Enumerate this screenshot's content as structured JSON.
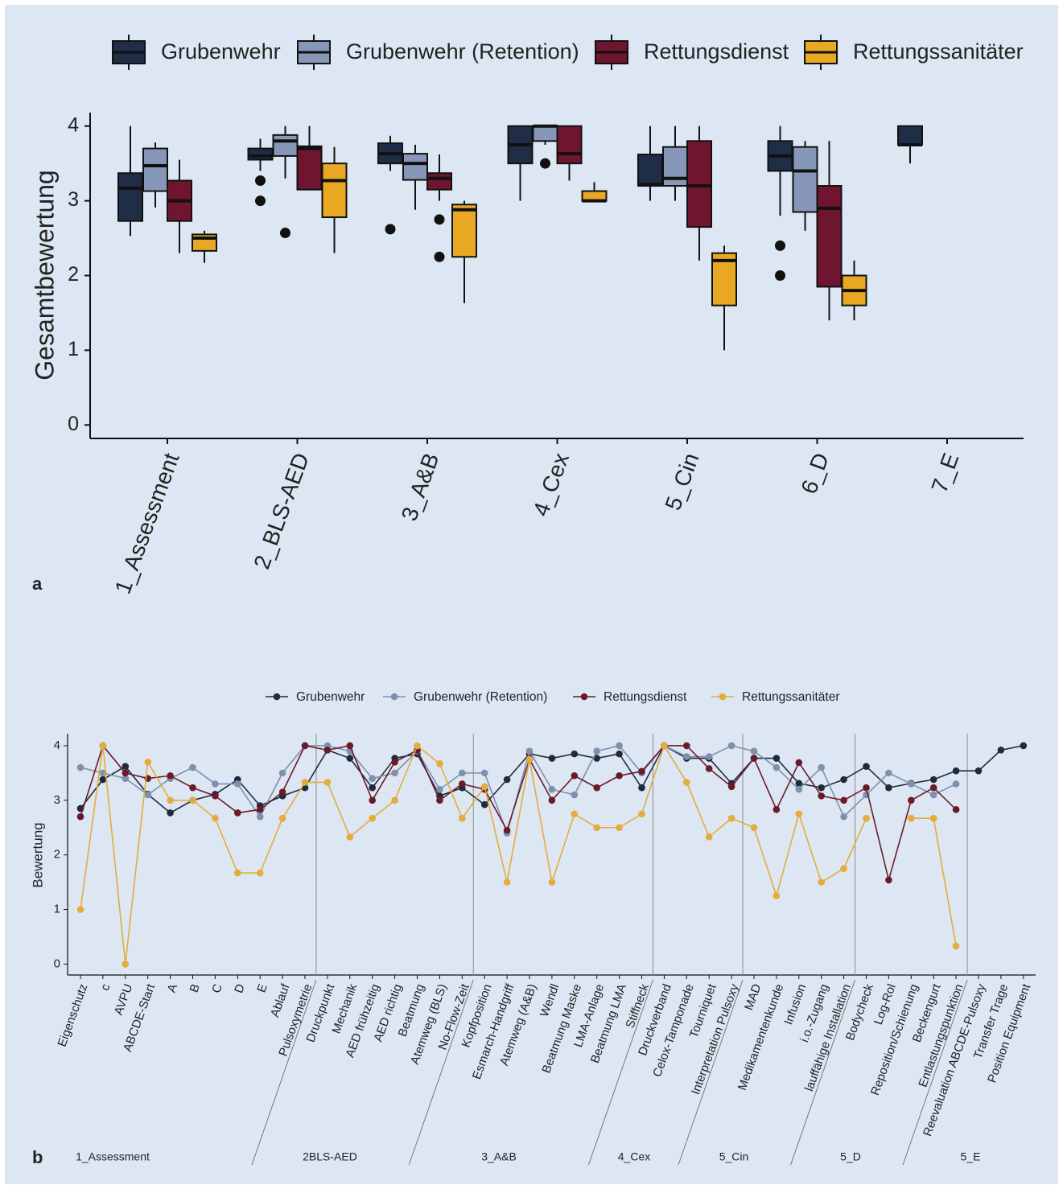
{
  "chart_data": [
    {
      "type": "box",
      "panel": "a",
      "y_label": "Gesamtbewertung",
      "categories": [
        "1_Assessment",
        "2_BLS-AED",
        "3_A&B",
        "4_Cex",
        "5_Cin",
        "6_D",
        "7_E"
      ],
      "ylim": [
        -0.18,
        4.18
      ],
      "yticks": [
        0,
        1,
        2,
        3,
        4
      ],
      "grid": false,
      "legend": "top",
      "series": [
        {
          "name": "Grubenwehr",
          "color": "#1f2d47",
          "min": [
            2.53,
            3.4,
            3.4,
            3.0,
            3.0,
            2.8,
            3.5
          ],
          "q1": [
            2.73,
            3.55,
            3.5,
            3.5,
            3.2,
            3.4,
            3.75
          ],
          "median": [
            3.17,
            3.6,
            3.63,
            3.75,
            3.22,
            3.6,
            3.75
          ],
          "q3": [
            3.37,
            3.7,
            3.77,
            4.0,
            3.62,
            3.8,
            4.0
          ],
          "max": [
            4.0,
            3.83,
            3.87,
            4.0,
            4.0,
            4.0,
            4.0
          ],
          "outliers": [
            [],
            [
              3.27,
              3.0
            ],
            [
              2.62
            ],
            [],
            [],
            [
              2.4,
              2.0
            ],
            []
          ]
        },
        {
          "name": "Grubenwehr (Retention)",
          "color": "#8797b8",
          "min": [
            2.91,
            3.3,
            2.88,
            3.75,
            3.0,
            2.6,
            null
          ],
          "q1": [
            3.13,
            3.6,
            3.28,
            3.8,
            3.2,
            2.85,
            null
          ],
          "median": [
            3.47,
            3.8,
            3.5,
            4.0,
            3.3,
            3.4,
            null
          ],
          "q3": [
            3.7,
            3.88,
            3.63,
            4.0,
            3.72,
            3.72,
            null
          ],
          "max": [
            3.78,
            4.0,
            3.75,
            4.0,
            4.0,
            3.8,
            null
          ],
          "outliers": [
            [],
            [
              2.57
            ],
            [],
            [
              3.5
            ],
            [],
            [],
            null
          ]
        },
        {
          "name": "Rettungsdienst",
          "color": "#6f1530",
          "min": [
            2.3,
            3.15,
            3.0,
            3.27,
            2.2,
            1.4,
            null
          ],
          "q1": [
            2.73,
            3.15,
            3.15,
            3.5,
            2.65,
            1.85,
            null
          ],
          "median": [
            3.0,
            3.7,
            3.3,
            3.63,
            3.2,
            2.9,
            null
          ],
          "q3": [
            3.27,
            3.73,
            3.37,
            4.0,
            3.8,
            3.2,
            null
          ],
          "max": [
            3.55,
            4.0,
            3.62,
            4.0,
            4.0,
            3.8,
            null
          ],
          "outliers": [
            [],
            [],
            [
              2.75,
              2.25
            ],
            [],
            [],
            [],
            null
          ]
        },
        {
          "name": "Rettungssanitäter",
          "color": "#e8a823",
          "min": [
            2.17,
            2.3,
            1.63,
            3.0,
            1.0,
            1.4,
            null
          ],
          "q1": [
            2.33,
            2.78,
            2.25,
            3.0,
            1.6,
            1.6,
            null
          ],
          "median": [
            2.5,
            3.27,
            2.88,
            3.0,
            2.2,
            1.8,
            null
          ],
          "q3": [
            2.55,
            3.5,
            2.95,
            3.13,
            2.3,
            2.0,
            null
          ],
          "max": [
            2.6,
            3.72,
            3.0,
            3.25,
            2.4,
            2.2,
            null
          ],
          "outliers": [
            [],
            [],
            [],
            [],
            [],
            [],
            null
          ]
        }
      ]
    },
    {
      "type": "line",
      "panel": "b",
      "y_label": "Bewertung",
      "categories": [
        "Eigenschutz",
        "c",
        "AVPU",
        "ABCDE-Start",
        "A",
        "B",
        "C",
        "D",
        "E",
        "Ablauf",
        "Pulsoxymetrie",
        "Druckpunkt",
        "Mechanik",
        "AED frühzeitig",
        "AED richtig",
        "Beatmung",
        "Atemweg (BLS)",
        "No-Flow-Zeit",
        "Kopfposition",
        "Esmarch-Handgriff",
        "Atemweg (A&B)",
        "Wendl",
        "Beatmung Maske",
        "LMA-Anlage",
        "Beatmung LMA",
        "Stiffneck",
        "Druckverband",
        "Celox-Tamponade",
        "Tourniquet",
        "Interpretation Pulsoxy",
        "MAD",
        "Medikamentenkunde",
        "Infusion",
        "i.o.-Zugang",
        "lauffähige Installation",
        "Bodycheck",
        "Log-Rol",
        "Reposition/Schienung",
        "Beckengurt",
        "Entlastungspunktion",
        "Reevaluation ABCDE-Pulsoxy",
        "Transfer Trage",
        "Position Equipment"
      ],
      "groups": [
        "1_Assessment",
        "2BLS-AED",
        "3_A&B",
        "4_Cex",
        "5_Cin",
        "5_D",
        "5_E"
      ],
      "ylim": [
        -0.2,
        4.22
      ],
      "yticks": [
        0,
        1,
        2,
        3,
        4
      ],
      "grid": false,
      "legend": "top",
      "series": [
        {
          "name": "Grubenwehr",
          "color": "#1f2a3c",
          "values": [
            2.85,
            3.38,
            3.62,
            3.11,
            2.77,
            3.0,
            3.11,
            3.38,
            2.9,
            3.08,
            3.23,
            3.92,
            3.77,
            3.23,
            3.77,
            3.85,
            3.08,
            3.23,
            2.92,
            3.38,
            3.85,
            3.77,
            3.85,
            3.77,
            3.85,
            3.23,
            4.0,
            3.77,
            3.77,
            3.31,
            3.77,
            3.77,
            3.31,
            3.23,
            3.38,
            3.62,
            3.23,
            3.31,
            3.38,
            3.54,
            3.54,
            3.92,
            4.0
          ]
        },
        {
          "name": "Grubenwehr (Retention)",
          "color": "#7f8fac",
          "values": [
            3.6,
            3.5,
            3.4,
            3.1,
            3.4,
            3.6,
            3.3,
            3.3,
            2.7,
            3.5,
            4.0,
            4.0,
            3.9,
            3.4,
            3.5,
            3.9,
            3.2,
            3.5,
            3.5,
            2.4,
            3.9,
            3.2,
            3.1,
            3.9,
            4.0,
            3.5,
            4.0,
            3.8,
            3.8,
            4.0,
            3.9,
            3.6,
            3.2,
            3.6,
            2.7,
            3.1,
            3.5,
            3.3,
            3.1,
            3.3,
            null,
            null,
            null
          ]
        },
        {
          "name": "Rettungsdienst",
          "color": "#6b1a2a",
          "values": [
            2.7,
            4.0,
            3.5,
            3.4,
            3.45,
            3.23,
            3.08,
            2.77,
            2.83,
            3.15,
            4.0,
            3.92,
            4.0,
            3.0,
            3.7,
            3.92,
            3.0,
            3.3,
            3.2,
            2.45,
            3.75,
            3.0,
            3.45,
            3.23,
            3.45,
            3.53,
            4.0,
            4.0,
            3.58,
            3.25,
            3.77,
            2.83,
            3.69,
            3.08,
            3.0,
            3.23,
            1.54,
            3.0,
            3.23,
            2.83,
            null,
            null,
            null
          ]
        },
        {
          "name": "Rettungssanitäter",
          "color": "#e3ac3c",
          "values": [
            1.0,
            4.0,
            0,
            3.7,
            3.0,
            3.0,
            2.67,
            1.67,
            1.67,
            2.67,
            3.33,
            3.33,
            2.33,
            2.67,
            3.0,
            4.0,
            3.67,
            2.67,
            3.25,
            1.5,
            3.75,
            1.5,
            2.75,
            2.5,
            2.5,
            2.75,
            4.0,
            3.33,
            2.33,
            2.67,
            2.5,
            1.25,
            2.75,
            1.5,
            1.75,
            2.67,
            null,
            2.67,
            2.67,
            0.33,
            null,
            null,
            null
          ]
        }
      ]
    }
  ]
}
